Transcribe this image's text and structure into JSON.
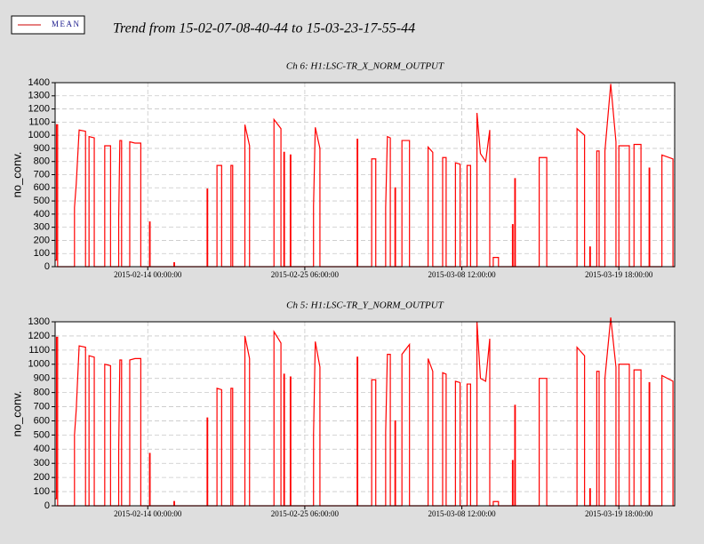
{
  "title": "Trend from 15-02-07-08-40-44 to 15-03-23-17-55-44",
  "legend": [
    {
      "name": "MEAN",
      "color": "#cc0000"
    }
  ],
  "chart_data": [
    {
      "type": "line",
      "title": "Ch 6: H1:LSC-TR_X_NORM_OUTPUT",
      "ylabel": "no_conv.",
      "color": "#ff0000",
      "grid": true,
      "xlim": [
        "2015-02-07 08:40:44",
        "2015-03-23 17:55:44"
      ],
      "xticks": [
        "2015-02-14 00:00:00",
        "2015-02-25 06:00:00",
        "2015-03-08 12:00:00",
        "2015-03-19 18:00:00"
      ],
      "ylim": [
        0,
        1400
      ],
      "yticks": [
        0,
        100,
        200,
        300,
        400,
        500,
        600,
        700,
        800,
        900,
        1000,
        1100,
        1200,
        1300,
        1400
      ],
      "x": [
        "2015-02-07 08:40:44",
        "2015-02-07 11:00:00",
        "2015-02-07 11:00:00",
        "2015-02-07 13:00:00",
        "2015-02-07 13:00:00",
        "2015-02-08 18:00:00",
        "2015-02-08 18:00:00",
        "2015-02-08 21:00:00",
        "2015-02-09 02:00:00",
        "2015-02-09 13:00:00",
        "2015-02-09 13:00:00",
        "2015-02-09 19:00:00",
        "2015-02-09 19:00:00",
        "2015-02-10 04:00:00",
        "2015-02-10 04:00:00",
        "2015-02-10 22:00:00",
        "2015-02-10 22:00:00",
        "2015-02-11 08:00:00",
        "2015-02-11 08:00:00",
        "2015-02-11 22:00:00",
        "2015-02-11 22:00:00",
        "2015-02-12 00:00:00",
        "2015-02-12 03:00:00",
        "2015-02-12 03:00:00",
        "2015-02-12 17:00:00",
        "2015-02-12 17:00:00",
        "2015-02-13 02:00:00",
        "2015-02-13 12:00:00",
        "2015-02-13 12:00:00",
        "2015-02-14 03:00:00",
        "2015-02-14 03:00:00",
        "2015-02-14 04:00:00",
        "2015-02-14 04:00:00",
        "2015-02-15 21:00:00",
        "2015-02-15 21:00:00",
        "2015-02-15 22:00:00",
        "2015-02-15 22:00:00",
        "2015-02-18 06:00:00",
        "2015-02-18 06:00:00",
        "2015-02-18 07:00:00",
        "2015-02-18 07:00:00",
        "2015-02-18 23:00:00",
        "2015-02-18 23:00:00",
        "2015-02-19 07:00:00",
        "2015-02-19 07:00:00",
        "2015-02-19 23:00:00",
        "2015-02-19 23:00:00",
        "2015-02-20 02:00:00",
        "2015-02-20 02:00:00",
        "2015-02-20 23:00:00",
        "2015-02-20 23:00:00",
        "2015-02-21 07:00:00",
        "2015-02-21 07:00:00",
        "2015-02-23 01:00:00",
        "2015-02-23 01:00:00",
        "2015-02-23 13:00:00",
        "2015-02-23 13:00:00",
        "2015-02-23 18:00:00",
        "2015-02-23 18:00:00",
        "2015-02-23 19:00:00",
        "2015-02-23 19:00:00",
        "2015-02-24 05:00:00",
        "2015-02-24 05:00:00",
        "2015-02-24 06:00:00",
        "2015-02-24 06:00:00",
        "2015-02-25 21:00:00",
        "2015-02-25 21:00:00",
        "2015-02-26 00:00:00",
        "2015-02-26 08:00:00",
        "2015-02-26 08:00:00",
        "2015-03-01 00:00:00",
        "2015-03-01 00:00:00",
        "2015-03-01 01:00:00",
        "2015-03-01 01:00:00",
        "2015-03-02 01:00:00",
        "2015-03-02 01:00:00",
        "2015-03-02 08:00:00",
        "2015-03-02 08:00:00",
        "2015-03-03 01:00:00",
        "2015-03-03 01:00:00",
        "2015-03-03 04:00:00",
        "2015-03-03 09:00:00",
        "2015-03-03 09:00:00",
        "2015-03-03 17:00:00",
        "2015-03-03 17:00:00",
        "2015-03-03 18:00:00",
        "2015-03-03 18:00:00",
        "2015-03-04 05:00:00",
        "2015-03-04 05:00:00",
        "2015-03-04 18:00:00",
        "2015-03-04 18:00:00",
        "2015-03-06 02:00:00",
        "2015-03-06 02:00:00",
        "2015-03-06 10:00:00",
        "2015-03-06 10:00:00",
        "2015-03-07 03:00:00",
        "2015-03-07 03:00:00",
        "2015-03-07 09:00:00",
        "2015-03-07 09:00:00",
        "2015-03-08 01:00:00",
        "2015-03-08 01:00:00",
        "2015-03-08 09:00:00",
        "2015-03-08 09:00:00",
        "2015-03-08 21:00:00",
        "2015-03-08 21:00:00",
        "2015-03-09 03:00:00",
        "2015-03-09 03:00:00",
        "2015-03-09 14:00:00",
        "2015-03-09 14:00:00",
        "2015-03-09 20:00:00",
        "2015-03-10 05:00:00",
        "2015-03-10 12:00:00",
        "2015-03-10 12:00:00",
        "2015-03-10 18:00:00",
        "2015-03-10 18:00:00",
        "2015-03-11 03:00:00",
        "2015-03-11 03:00:00",
        "2015-03-12 03:00:00",
        "2015-03-12 03:00:00",
        "2015-03-12 04:00:00",
        "2015-03-12 04:00:00",
        "2015-03-12 07:00:00",
        "2015-03-12 07:00:00",
        "2015-03-12 08:00:00",
        "2015-03-12 08:00:00",
        "2015-03-14 01:00:00",
        "2015-03-14 01:00:00",
        "2015-03-14 14:00:00",
        "2015-03-14 14:00:00",
        "2015-03-16 18:00:00",
        "2015-03-16 18:00:00",
        "2015-03-17 07:00:00",
        "2015-03-17 07:00:00",
        "2015-03-17 16:00:00",
        "2015-03-17 16:00:00",
        "2015-03-17 17:00:00",
        "2015-03-17 17:00:00",
        "2015-03-18 04:00:00",
        "2015-03-18 04:00:00",
        "2015-03-18 08:00:00",
        "2015-03-18 08:00:00",
        "2015-03-18 18:00:00",
        "2015-03-18 18:00:00",
        "2015-03-19 04:00:00",
        "2015-03-19 13:00:00",
        "2015-03-19 13:00:00",
        "2015-03-19 18:00:00",
        "2015-03-19 18:00:00",
        "2015-03-20 12:00:00",
        "2015-03-20 12:00:00",
        "2015-03-20 20:00:00",
        "2015-03-20 20:00:00",
        "2015-03-21 08:00:00",
        "2015-03-21 08:00:00",
        "2015-03-21 22:00:00",
        "2015-03-21 22:00:00",
        "2015-03-21 23:00:00",
        "2015-03-21 23:00:00",
        "2015-03-22 20:00:00",
        "2015-03-22 20:00:00",
        "2015-03-23 15:00:00",
        "2015-03-23 15:00:00",
        "2015-03-23 17:55:44"
      ],
      "values": [
        50,
        50,
        1080,
        1080,
        0,
        0,
        450,
        630,
        1040,
        1030,
        0,
        0,
        990,
        980,
        0,
        0,
        920,
        920,
        0,
        0,
        360,
        960,
        960,
        0,
        0,
        950,
        940,
        940,
        0,
        0,
        340,
        340,
        0,
        0,
        30,
        30,
        0,
        0,
        590,
        590,
        0,
        0,
        770,
        770,
        0,
        0,
        770,
        770,
        0,
        0,
        1080,
        920,
        0,
        0,
        1120,
        1050,
        0,
        0,
        870,
        870,
        0,
        0,
        850,
        850,
        0,
        0,
        460,
        1060,
        900,
        0,
        0,
        970,
        970,
        0,
        0,
        820,
        820,
        0,
        0,
        450,
        990,
        980,
        0,
        0,
        600,
        600,
        0,
        0,
        960,
        960,
        0,
        0,
        910,
        870,
        0,
        0,
        830,
        830,
        0,
        0,
        790,
        780,
        0,
        0,
        770,
        770,
        0,
        0,
        1170,
        860,
        800,
        1040,
        0,
        0,
        70,
        70,
        0,
        0,
        320,
        320,
        0,
        0,
        670,
        670,
        0,
        0,
        830,
        830,
        0,
        0,
        1050,
        1000,
        0,
        0,
        150,
        150,
        0,
        0,
        880,
        880,
        0,
        0,
        880,
        1390,
        950,
        0,
        0,
        920,
        920,
        0,
        0,
        930,
        930,
        0,
        0,
        750,
        750,
        0,
        0,
        850,
        820,
        0,
        0
      ]
    },
    {
      "type": "line",
      "title": "Ch 5: H1:LSC-TR_Y_NORM_OUTPUT",
      "ylabel": "no_conv.",
      "color": "#ff0000",
      "grid": true,
      "xlim": [
        "2015-02-07 08:40:44",
        "2015-03-23 17:55:44"
      ],
      "xticks": [
        "2015-02-14 00:00:00",
        "2015-02-25 06:00:00",
        "2015-03-08 12:00:00",
        "2015-03-19 18:00:00"
      ],
      "ylim": [
        0,
        1300
      ],
      "yticks": [
        0,
        100,
        200,
        300,
        400,
        500,
        600,
        700,
        800,
        900,
        1000,
        1100,
        1200,
        1300
      ],
      "x": [
        "2015-02-07 08:40:44",
        "2015-02-07 11:00:00",
        "2015-02-07 11:00:00",
        "2015-02-07 13:00:00",
        "2015-02-07 13:00:00",
        "2015-02-08 18:00:00",
        "2015-02-08 18:00:00",
        "2015-02-08 21:00:00",
        "2015-02-09 02:00:00",
        "2015-02-09 13:00:00",
        "2015-02-09 13:00:00",
        "2015-02-09 19:00:00",
        "2015-02-09 19:00:00",
        "2015-02-10 04:00:00",
        "2015-02-10 04:00:00",
        "2015-02-10 22:00:00",
        "2015-02-10 22:00:00",
        "2015-02-11 08:00:00",
        "2015-02-11 08:00:00",
        "2015-02-11 22:00:00",
        "2015-02-11 22:00:00",
        "2015-02-12 00:00:00",
        "2015-02-12 03:00:00",
        "2015-02-12 03:00:00",
        "2015-02-12 17:00:00",
        "2015-02-12 17:00:00",
        "2015-02-13 02:00:00",
        "2015-02-13 12:00:00",
        "2015-02-13 12:00:00",
        "2015-02-14 03:00:00",
        "2015-02-14 03:00:00",
        "2015-02-14 04:00:00",
        "2015-02-14 04:00:00",
        "2015-02-15 21:00:00",
        "2015-02-15 21:00:00",
        "2015-02-15 22:00:00",
        "2015-02-15 22:00:00",
        "2015-02-18 06:00:00",
        "2015-02-18 06:00:00",
        "2015-02-18 07:00:00",
        "2015-02-18 07:00:00",
        "2015-02-18 23:00:00",
        "2015-02-18 23:00:00",
        "2015-02-19 07:00:00",
        "2015-02-19 07:00:00",
        "2015-02-19 23:00:00",
        "2015-02-19 23:00:00",
        "2015-02-20 02:00:00",
        "2015-02-20 02:00:00",
        "2015-02-20 23:00:00",
        "2015-02-20 23:00:00",
        "2015-02-21 07:00:00",
        "2015-02-21 07:00:00",
        "2015-02-23 01:00:00",
        "2015-02-23 01:00:00",
        "2015-02-23 13:00:00",
        "2015-02-23 13:00:00",
        "2015-02-23 18:00:00",
        "2015-02-23 18:00:00",
        "2015-02-23 19:00:00",
        "2015-02-23 19:00:00",
        "2015-02-24 05:00:00",
        "2015-02-24 05:00:00",
        "2015-02-24 06:00:00",
        "2015-02-24 06:00:00",
        "2015-02-25 21:00:00",
        "2015-02-25 21:00:00",
        "2015-02-26 00:00:00",
        "2015-02-26 08:00:00",
        "2015-02-26 08:00:00",
        "2015-03-01 00:00:00",
        "2015-03-01 00:00:00",
        "2015-03-01 01:00:00",
        "2015-03-01 01:00:00",
        "2015-03-02 01:00:00",
        "2015-03-02 01:00:00",
        "2015-03-02 08:00:00",
        "2015-03-02 08:00:00",
        "2015-03-03 01:00:00",
        "2015-03-03 01:00:00",
        "2015-03-03 04:00:00",
        "2015-03-03 09:00:00",
        "2015-03-03 09:00:00",
        "2015-03-03 17:00:00",
        "2015-03-03 17:00:00",
        "2015-03-03 18:00:00",
        "2015-03-03 18:00:00",
        "2015-03-04 05:00:00",
        "2015-03-04 05:00:00",
        "2015-03-04 18:00:00",
        "2015-03-04 18:00:00",
        "2015-03-06 02:00:00",
        "2015-03-06 02:00:00",
        "2015-03-06 10:00:00",
        "2015-03-06 10:00:00",
        "2015-03-07 03:00:00",
        "2015-03-07 03:00:00",
        "2015-03-07 09:00:00",
        "2015-03-07 09:00:00",
        "2015-03-08 01:00:00",
        "2015-03-08 01:00:00",
        "2015-03-08 09:00:00",
        "2015-03-08 09:00:00",
        "2015-03-08 21:00:00",
        "2015-03-08 21:00:00",
        "2015-03-09 03:00:00",
        "2015-03-09 03:00:00",
        "2015-03-09 14:00:00",
        "2015-03-09 14:00:00",
        "2015-03-09 20:00:00",
        "2015-03-10 05:00:00",
        "2015-03-10 12:00:00",
        "2015-03-10 12:00:00",
        "2015-03-10 18:00:00",
        "2015-03-10 18:00:00",
        "2015-03-11 03:00:00",
        "2015-03-11 03:00:00",
        "2015-03-12 03:00:00",
        "2015-03-12 03:00:00",
        "2015-03-12 04:00:00",
        "2015-03-12 04:00:00",
        "2015-03-12 07:00:00",
        "2015-03-12 07:00:00",
        "2015-03-12 08:00:00",
        "2015-03-12 08:00:00",
        "2015-03-14 01:00:00",
        "2015-03-14 01:00:00",
        "2015-03-14 14:00:00",
        "2015-03-14 14:00:00",
        "2015-03-16 18:00:00",
        "2015-03-16 18:00:00",
        "2015-03-17 07:00:00",
        "2015-03-17 07:00:00",
        "2015-03-17 16:00:00",
        "2015-03-17 16:00:00",
        "2015-03-17 17:00:00",
        "2015-03-17 17:00:00",
        "2015-03-18 04:00:00",
        "2015-03-18 04:00:00",
        "2015-03-18 08:00:00",
        "2015-03-18 08:00:00",
        "2015-03-18 18:00:00",
        "2015-03-18 18:00:00",
        "2015-03-19 04:00:00",
        "2015-03-19 13:00:00",
        "2015-03-19 13:00:00",
        "2015-03-19 18:00:00",
        "2015-03-19 18:00:00",
        "2015-03-20 12:00:00",
        "2015-03-20 12:00:00",
        "2015-03-20 20:00:00",
        "2015-03-20 20:00:00",
        "2015-03-21 08:00:00",
        "2015-03-21 08:00:00",
        "2015-03-21 22:00:00",
        "2015-03-21 22:00:00",
        "2015-03-21 23:00:00",
        "2015-03-21 23:00:00",
        "2015-03-22 20:00:00",
        "2015-03-22 20:00:00",
        "2015-03-23 15:00:00",
        "2015-03-23 15:00:00",
        "2015-03-23 17:55:44"
      ],
      "values": [
        50,
        50,
        1190,
        1190,
        0,
        0,
        500,
        680,
        1130,
        1120,
        0,
        0,
        1060,
        1050,
        0,
        0,
        1000,
        990,
        0,
        0,
        390,
        1030,
        1030,
        0,
        0,
        1030,
        1040,
        1040,
        0,
        0,
        370,
        370,
        0,
        0,
        30,
        30,
        0,
        0,
        620,
        620,
        0,
        0,
        830,
        820,
        0,
        0,
        830,
        830,
        0,
        0,
        1200,
        1040,
        0,
        0,
        1230,
        1150,
        0,
        0,
        930,
        930,
        0,
        0,
        910,
        910,
        0,
        0,
        500,
        1160,
        980,
        0,
        0,
        1050,
        1050,
        0,
        0,
        890,
        890,
        0,
        0,
        520,
        1070,
        1070,
        0,
        0,
        600,
        600,
        0,
        0,
        1070,
        1140,
        0,
        0,
        1040,
        950,
        0,
        0,
        940,
        930,
        0,
        0,
        880,
        870,
        0,
        0,
        860,
        860,
        0,
        0,
        1300,
        900,
        880,
        1180,
        0,
        0,
        30,
        30,
        0,
        0,
        320,
        320,
        0,
        0,
        710,
        710,
        0,
        0,
        900,
        900,
        0,
        0,
        1120,
        1060,
        0,
        0,
        120,
        120,
        0,
        0,
        950,
        950,
        0,
        0,
        900,
        1330,
        980,
        0,
        0,
        1000,
        1000,
        0,
        0,
        960,
        960,
        0,
        0,
        870,
        870,
        0,
        0,
        920,
        880,
        0,
        0
      ]
    }
  ]
}
